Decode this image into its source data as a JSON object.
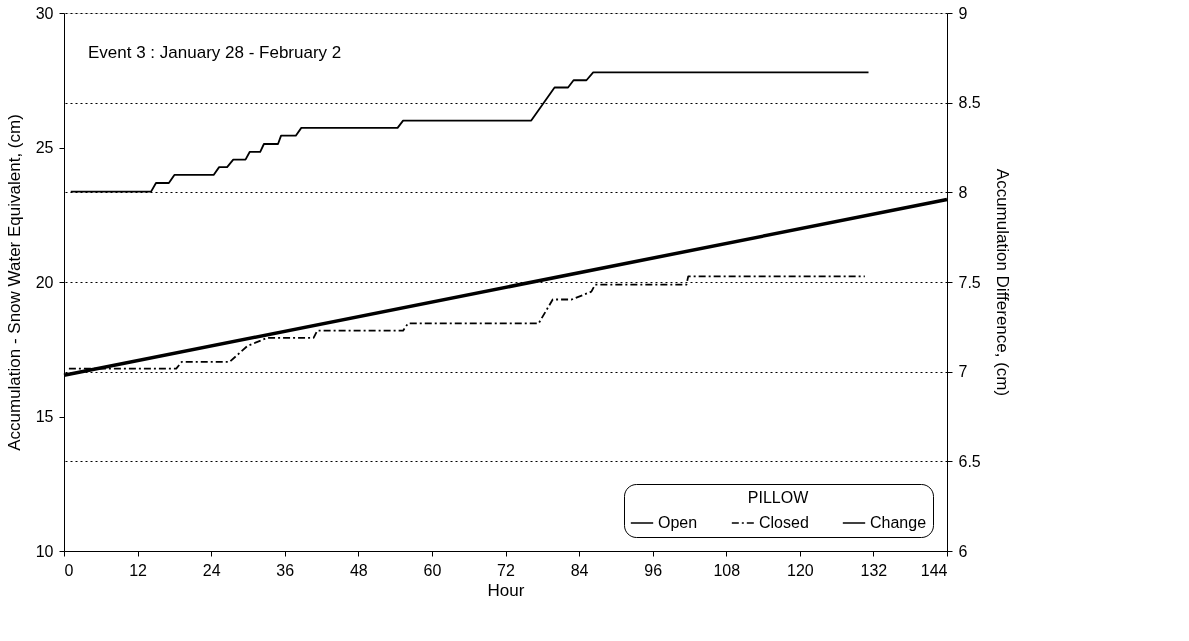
{
  "chart_data": {
    "type": "line",
    "xlabel": "Hour",
    "ylabel": "Accumulation - Snow Water Equivalent, (cm)",
    "y2label": "Accumulation Difference, (cm)",
    "legend_title": "PILLOW",
    "annotations": [
      "Event 3 : January 28 - February 2"
    ],
    "xlim": [
      0,
      144
    ],
    "xticks": [
      0,
      12,
      24,
      36,
      48,
      60,
      72,
      84,
      96,
      108,
      120,
      132,
      144
    ],
    "ylim": [
      10,
      30
    ],
    "yticks": [
      10,
      15,
      20,
      25,
      30
    ],
    "y2lim": [
      6,
      9
    ],
    "y2ticks": [
      6,
      6.5,
      7,
      7.5,
      8,
      8.5,
      9
    ],
    "grid": "y2",
    "legend": "bottom right",
    "marker": "none",
    "series": [
      {
        "name": "Open",
        "color": "#000000",
        "line_style": "solid",
        "x": [
          1.1,
          14.2,
          15.0,
          17.1,
          18.0,
          24.4,
          25.3,
          26.6,
          27.6,
          29.6,
          30.3,
          32.0,
          32.6,
          34.9,
          35.4,
          37.8,
          38.7,
          54.4,
          55.3,
          76.2,
          80.0,
          82.2,
          83.1,
          85.2,
          86.3,
          131.2
        ],
        "values": [
          23.36,
          23.36,
          23.68,
          23.68,
          23.98,
          23.98,
          24.27,
          24.27,
          24.55,
          24.55,
          24.84,
          24.84,
          25.13,
          25.13,
          25.44,
          25.44,
          25.73,
          25.73,
          26.0,
          26.0,
          27.23,
          27.23,
          27.5,
          27.5,
          27.79,
          27.79
        ]
      },
      {
        "name": "Closed",
        "color": "#000000",
        "line_style": "dashed",
        "x": [
          0.8,
          18.3,
          19.2,
          27.0,
          29.9,
          33.1,
          40.7,
          41.3,
          55.3,
          56.1,
          77.4,
          79.7,
          82.8,
          86.0,
          86.6,
          101.5,
          101.8,
          130.6
        ],
        "values": [
          16.78,
          16.78,
          17.03,
          17.03,
          17.62,
          17.92,
          17.92,
          18.19,
          18.19,
          18.46,
          18.46,
          19.35,
          19.35,
          19.64,
          19.9,
          19.9,
          20.21,
          20.21
        ]
      },
      {
        "name": "Change",
        "color": "#000000",
        "line_style": "solid",
        "axis": "y2",
        "x": [
          0,
          144
        ],
        "values": [
          6.98,
          7.96
        ]
      }
    ]
  }
}
